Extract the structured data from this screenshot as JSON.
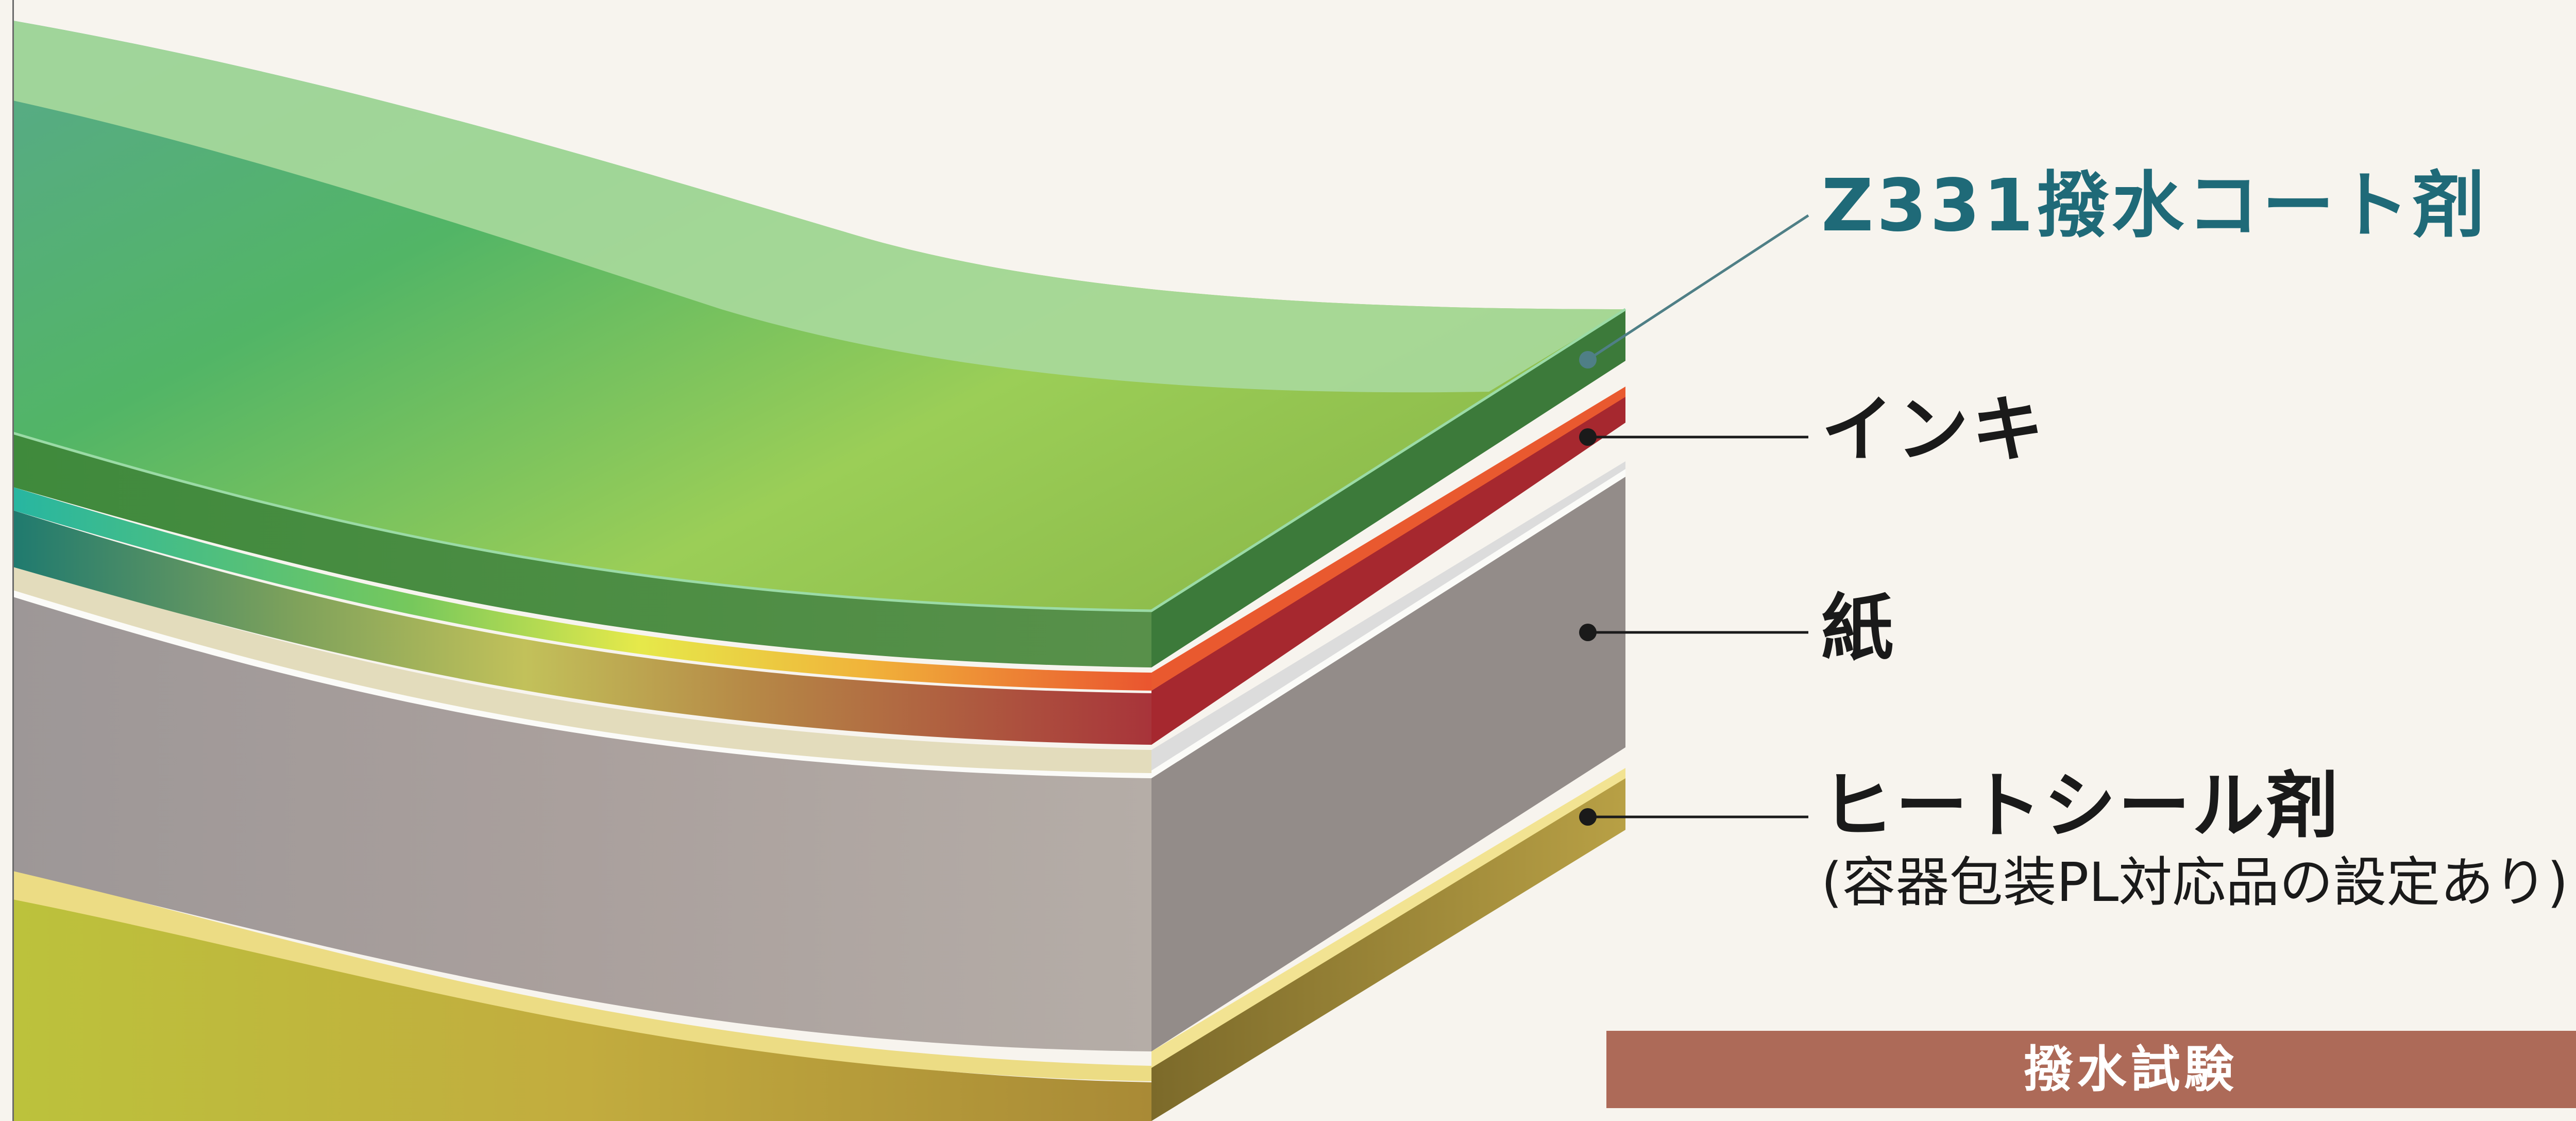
{
  "layers": {
    "coat": {
      "label": "Z331撥水コート剤",
      "color": "#1f6a78"
    },
    "ink": {
      "label": "インキ"
    },
    "paper": {
      "label": "紙"
    },
    "heat_seal": {
      "label": "ヒートシール剤",
      "note": "(容器包装PL対応品の設定あり)"
    }
  },
  "test_button": {
    "label": "撥水試験",
    "color": "#ad6a58"
  },
  "colors": {
    "background": "#f7f4ee",
    "coat_light": "#a5d59a",
    "coat_deep": "#4aa86a",
    "ink_red": "#a52a35",
    "ink_orange": "#e9592f",
    "paper_gray": "#a9a19d",
    "heat_seal_gold": "#b29a3a"
  }
}
